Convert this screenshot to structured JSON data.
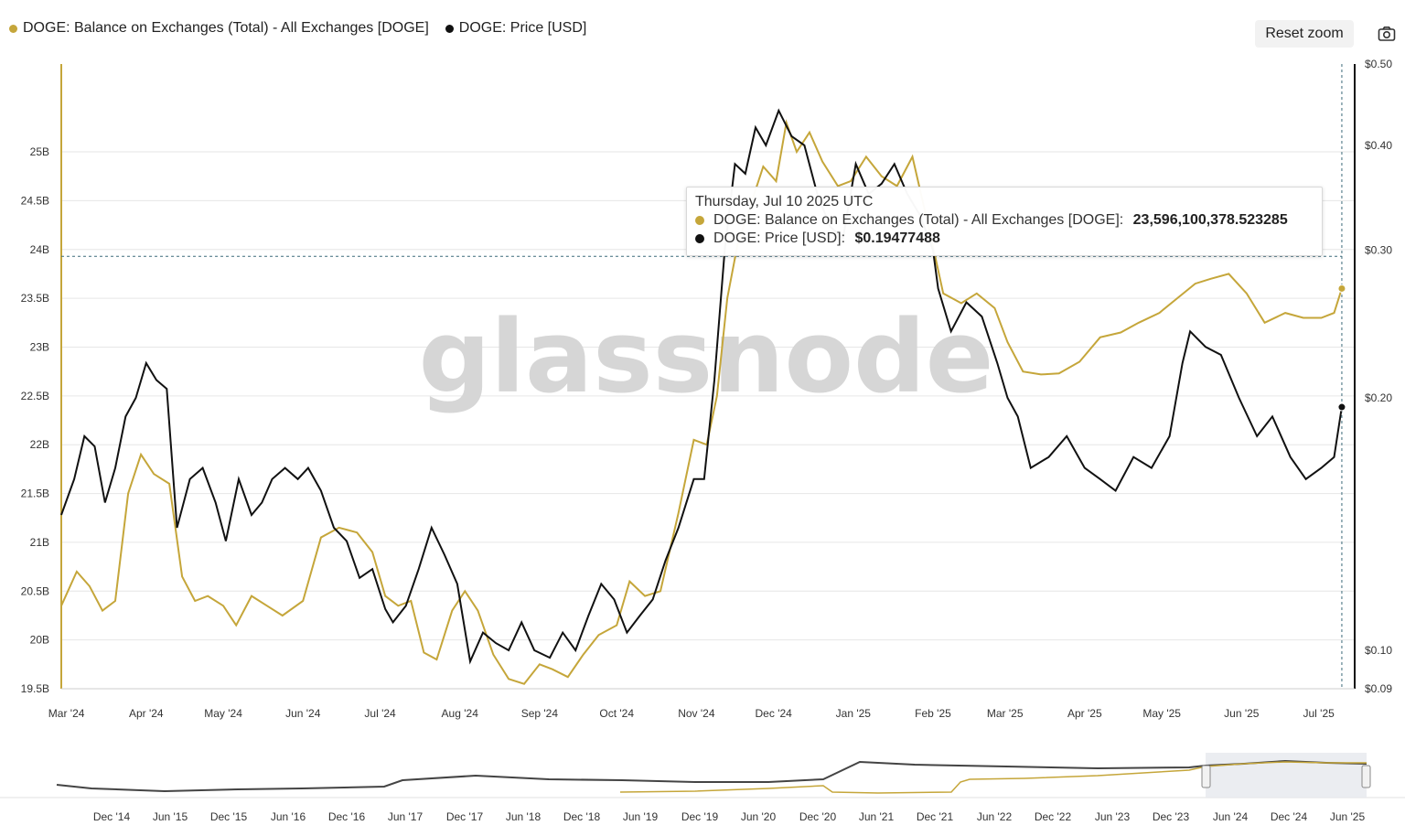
{
  "legend": {
    "series1": "DOGE: Balance on Exchanges (Total) - All Exchanges [DOGE]",
    "series2": "DOGE: Price [USD]"
  },
  "toolbar": {
    "reset_label": "Reset zoom"
  },
  "icons": {
    "camera": "camera-icon"
  },
  "colors": {
    "balance": "#c5a63a",
    "price": "#111111",
    "grid": "#e6e6e6",
    "crosshair": "#3d6b7a"
  },
  "watermark": "glassnode",
  "tooltip": {
    "date": "Thursday, Jul 10 2025 UTC",
    "balance_label": "DOGE: Balance on Exchanges (Total) - All Exchanges [DOGE]: ",
    "balance_value": "23,596,100,378.523285",
    "price_label": "DOGE: Price [USD]: ",
    "price_value": "$0.19477488"
  },
  "chart_data": {
    "type": "line",
    "x_range": [
      "2024-02-28",
      "2025-07-15"
    ],
    "x_ticks": [
      "Mar '24",
      "Apr '24",
      "May '24",
      "Jun '24",
      "Jul '24",
      "Aug '24",
      "Sep '24",
      "Oct '24",
      "Nov '24",
      "Dec '24",
      "Jan '25",
      "Feb '25",
      "Mar '25",
      "Apr '25",
      "May '25",
      "Jun '25",
      "Jul '25"
    ],
    "y_left": {
      "label": "",
      "ticks": [
        "19.5B",
        "20B",
        "20.5B",
        "21B",
        "21.5B",
        "22B",
        "22.5B",
        "23B",
        "23.5B",
        "24B",
        "24.5B",
        "25B"
      ],
      "ylim": [
        19.5,
        25.9
      ],
      "unit": "B"
    },
    "y_right": {
      "label": "",
      "scale": "log",
      "ticks": [
        "$0.09",
        "$0.10",
        "$0.20",
        "$0.30",
        "$0.40",
        "$0.50"
      ],
      "ylim": [
        0.09,
        0.5
      ]
    },
    "series": [
      {
        "name": "DOGE: Balance on Exchanges (Total) - All Exchanges [DOGE]",
        "axis": "left",
        "x": [
          "2024-02-28",
          "2024-03-05",
          "2024-03-10",
          "2024-03-15",
          "2024-03-20",
          "2024-03-25",
          "2024-03-30",
          "2024-04-04",
          "2024-04-10",
          "2024-04-15",
          "2024-04-20",
          "2024-04-25",
          "2024-05-01",
          "2024-05-06",
          "2024-05-12",
          "2024-05-18",
          "2024-05-24",
          "2024-06-01",
          "2024-06-08",
          "2024-06-15",
          "2024-06-22",
          "2024-06-28",
          "2024-07-03",
          "2024-07-08",
          "2024-07-13",
          "2024-07-18",
          "2024-07-23",
          "2024-07-29",
          "2024-08-03",
          "2024-08-08",
          "2024-08-14",
          "2024-08-20",
          "2024-08-26",
          "2024-09-01",
          "2024-09-06",
          "2024-09-12",
          "2024-09-18",
          "2024-09-24",
          "2024-10-01",
          "2024-10-06",
          "2024-10-12",
          "2024-10-18",
          "2024-10-25",
          "2024-10-31",
          "2024-11-05",
          "2024-11-09",
          "2024-11-13",
          "2024-11-17",
          "2024-11-22",
          "2024-11-27",
          "2024-12-02",
          "2024-12-06",
          "2024-12-10",
          "2024-12-15",
          "2024-12-20",
          "2024-12-26",
          "2024-12-31",
          "2025-01-06",
          "2025-01-12",
          "2025-01-18",
          "2025-01-24",
          "2025-01-31",
          "2025-02-05",
          "2025-02-12",
          "2025-02-18",
          "2025-02-25",
          "2025-03-02",
          "2025-03-08",
          "2025-03-15",
          "2025-03-22",
          "2025-03-30",
          "2025-04-07",
          "2025-04-15",
          "2025-04-22",
          "2025-04-30",
          "2025-05-07",
          "2025-05-14",
          "2025-05-20",
          "2025-05-27",
          "2025-06-03",
          "2025-06-10",
          "2025-06-18",
          "2025-06-25",
          "2025-07-02",
          "2025-07-07",
          "2025-07-10"
        ],
        "values": [
          20.35,
          20.7,
          20.55,
          20.3,
          20.4,
          21.5,
          21.9,
          21.7,
          21.6,
          20.65,
          20.4,
          20.45,
          20.35,
          20.15,
          20.45,
          20.35,
          20.25,
          20.4,
          21.05,
          21.15,
          21.1,
          20.9,
          20.45,
          20.35,
          20.4,
          19.87,
          19.8,
          20.3,
          20.5,
          20.3,
          19.85,
          19.6,
          19.55,
          19.75,
          19.7,
          19.62,
          19.85,
          20.05,
          20.15,
          20.6,
          20.45,
          20.5,
          21.3,
          22.05,
          22.0,
          22.5,
          23.5,
          24.05,
          24.45,
          24.85,
          24.7,
          25.3,
          25.0,
          25.2,
          24.9,
          24.65,
          24.7,
          24.95,
          24.75,
          24.65,
          24.95,
          24.15,
          23.55,
          23.45,
          23.55,
          23.4,
          23.05,
          22.75,
          22.72,
          22.73,
          22.85,
          23.1,
          23.15,
          23.25,
          23.35,
          23.5,
          23.65,
          23.7,
          23.75,
          23.55,
          23.25,
          23.35,
          23.3,
          23.3,
          23.35,
          23.6
        ]
      },
      {
        "name": "DOGE: Price [USD]",
        "axis": "right",
        "x": [
          "2024-02-28",
          "2024-03-04",
          "2024-03-08",
          "2024-03-12",
          "2024-03-16",
          "2024-03-20",
          "2024-03-24",
          "2024-03-28",
          "2024-04-01",
          "2024-04-05",
          "2024-04-09",
          "2024-04-13",
          "2024-04-18",
          "2024-04-23",
          "2024-04-28",
          "2024-05-02",
          "2024-05-07",
          "2024-05-12",
          "2024-05-16",
          "2024-05-20",
          "2024-05-25",
          "2024-05-30",
          "2024-06-03",
          "2024-06-08",
          "2024-06-13",
          "2024-06-18",
          "2024-06-23",
          "2024-06-28",
          "2024-07-03",
          "2024-07-06",
          "2024-07-11",
          "2024-07-16",
          "2024-07-21",
          "2024-07-26",
          "2024-07-31",
          "2024-08-05",
          "2024-08-10",
          "2024-08-15",
          "2024-08-20",
          "2024-08-25",
          "2024-08-30",
          "2024-09-05",
          "2024-09-10",
          "2024-09-15",
          "2024-09-20",
          "2024-09-25",
          "2024-09-30",
          "2024-10-05",
          "2024-10-10",
          "2024-10-15",
          "2024-10-20",
          "2024-10-25",
          "2024-10-31",
          "2024-11-04",
          "2024-11-08",
          "2024-11-12",
          "2024-11-16",
          "2024-11-20",
          "2024-11-24",
          "2024-11-28",
          "2024-12-03",
          "2024-12-08",
          "2024-12-13",
          "2024-12-18",
          "2024-12-23",
          "2024-12-28",
          "2025-01-02",
          "2025-01-07",
          "2025-01-12",
          "2025-01-17",
          "2025-01-22",
          "2025-01-27",
          "2025-02-01",
          "2025-02-03",
          "2025-02-08",
          "2025-02-14",
          "2025-02-20",
          "2025-02-26",
          "2025-03-02",
          "2025-03-06",
          "2025-03-11",
          "2025-03-18",
          "2025-03-25",
          "2025-04-01",
          "2025-04-07",
          "2025-04-13",
          "2025-04-20",
          "2025-04-27",
          "2025-05-04",
          "2025-05-09",
          "2025-05-12",
          "2025-05-18",
          "2025-05-24",
          "2025-05-31",
          "2025-06-07",
          "2025-06-13",
          "2025-06-20",
          "2025-06-26",
          "2025-07-02",
          "2025-07-07",
          "2025-07-10"
        ],
        "values": [
          0.145,
          0.16,
          0.18,
          0.175,
          0.15,
          0.165,
          0.19,
          0.2,
          0.22,
          0.21,
          0.205,
          0.14,
          0.16,
          0.165,
          0.15,
          0.135,
          0.16,
          0.145,
          0.15,
          0.16,
          0.165,
          0.16,
          0.165,
          0.155,
          0.14,
          0.135,
          0.122,
          0.125,
          0.112,
          0.108,
          0.113,
          0.125,
          0.14,
          0.13,
          0.12,
          0.097,
          0.105,
          0.102,
          0.1,
          0.108,
          0.1,
          0.098,
          0.105,
          0.1,
          0.11,
          0.12,
          0.115,
          0.105,
          0.11,
          0.115,
          0.128,
          0.14,
          0.16,
          0.16,
          0.21,
          0.3,
          0.38,
          0.37,
          0.42,
          0.4,
          0.44,
          0.41,
          0.4,
          0.35,
          0.32,
          0.31,
          0.38,
          0.35,
          0.36,
          0.38,
          0.35,
          0.33,
          0.3,
          0.27,
          0.24,
          0.26,
          0.25,
          0.22,
          0.2,
          0.19,
          0.165,
          0.17,
          0.18,
          0.165,
          0.16,
          0.155,
          0.17,
          0.165,
          0.18,
          0.22,
          0.24,
          0.23,
          0.225,
          0.2,
          0.18,
          0.19,
          0.17,
          0.16,
          0.165,
          0.17,
          0.195
        ]
      }
    ],
    "grid": true,
    "legend_position": "top-left",
    "crosshair_date": "2025-07-10",
    "navigator": {
      "x_ticks": [
        "Dec '14",
        "Jun '15",
        "Dec '15",
        "Jun '16",
        "Dec '16",
        "Jun '17",
        "Dec '17",
        "Jun '18",
        "Dec '18",
        "Jun '19",
        "Dec '19",
        "Jun '20",
        "Dec '20",
        "Jun '21",
        "Dec '21",
        "Jun '22",
        "Dec '22",
        "Jun '23",
        "Dec '23",
        "Jun '24",
        "Dec '24",
        "Jun '25"
      ]
    }
  }
}
